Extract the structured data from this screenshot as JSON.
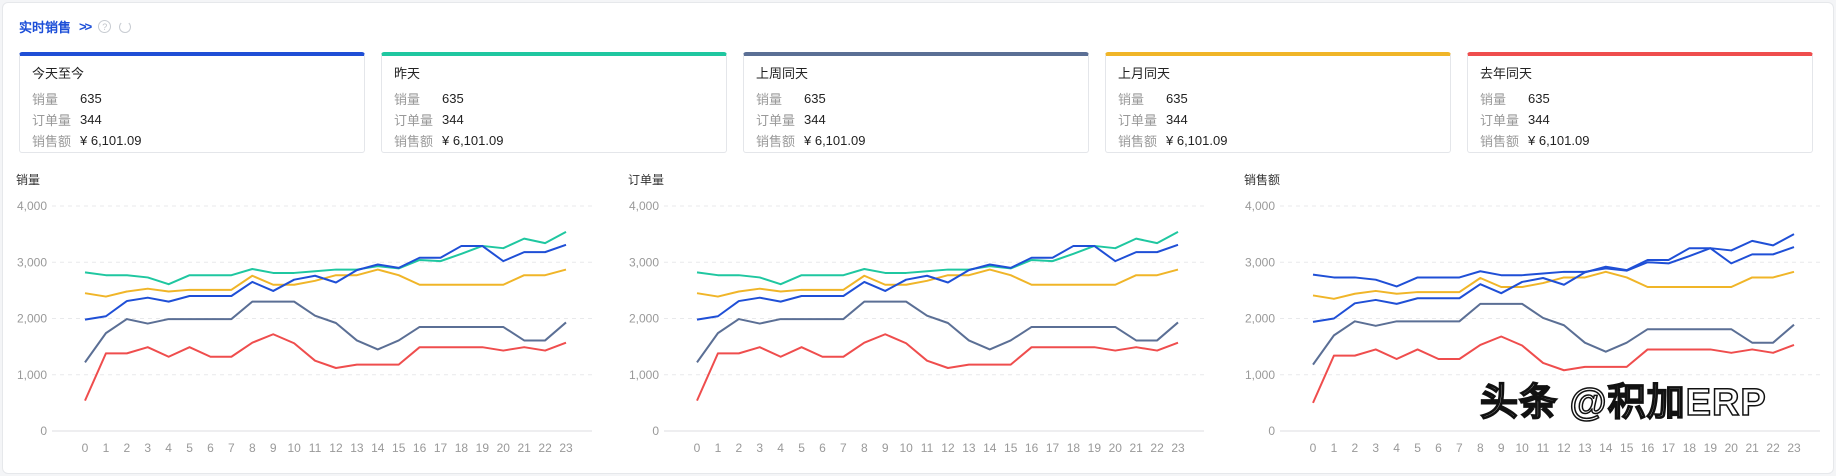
{
  "header": {
    "title": "实时销售",
    "more_icon": "double-chevron-right-icon",
    "help_icon": "question-circle-icon",
    "refresh_icon": "refresh-icon"
  },
  "labels": {
    "qty": "销量",
    "orders": "订单量",
    "amount": "销售额"
  },
  "cards": [
    {
      "title": "今天至今",
      "color": "#1f4fd6",
      "qty": "635",
      "orders": "344",
      "amount": "¥ 6,101.09"
    },
    {
      "title": "昨天",
      "color": "#1fc7a0",
      "qty": "635",
      "orders": "344",
      "amount": "¥ 6,101.09"
    },
    {
      "title": "上周同天",
      "color": "#5b6f95",
      "qty": "635",
      "orders": "344",
      "amount": "¥ 6,101.09"
    },
    {
      "title": "上月同天",
      "color": "#f0b528",
      "qty": "635",
      "orders": "344",
      "amount": "¥ 6,101.09"
    },
    {
      "title": "去年同天",
      "color": "#ef4d4d",
      "qty": "635",
      "orders": "344",
      "amount": "¥ 6,101.09"
    }
  ],
  "watermark": "头条 @积加ERP",
  "chart_data": [
    {
      "type": "line",
      "title": "销量",
      "ylim": [
        0,
        4000
      ],
      "yticks": [
        "0",
        "1,000",
        "2,000",
        "3,000",
        "4,000"
      ],
      "grid": true,
      "categories": [
        "0",
        "1",
        "2",
        "3",
        "4",
        "5",
        "6",
        "7",
        "8",
        "9",
        "10",
        "11",
        "12",
        "13",
        "14",
        "15",
        "16",
        "17",
        "18",
        "19",
        "20",
        "21",
        "22",
        "23"
      ],
      "series": [
        {
          "color": "#1fc7a0",
          "values": [
            2820,
            2770,
            2770,
            2730,
            2610,
            2770,
            2770,
            2770,
            2880,
            2810,
            2810,
            2840,
            2870,
            2870,
            2930,
            2890,
            3040,
            3020,
            3150,
            3290,
            3250,
            3420,
            3340,
            3540
          ]
        },
        {
          "color": "#f0b528",
          "values": [
            2450,
            2390,
            2480,
            2530,
            2480,
            2510,
            2510,
            2510,
            2760,
            2600,
            2600,
            2670,
            2770,
            2770,
            2870,
            2770,
            2600,
            2600,
            2600,
            2600,
            2600,
            2770,
            2770,
            2870
          ]
        },
        {
          "color": "#5b6f95",
          "values": [
            1220,
            1740,
            1990,
            1910,
            1990,
            1990,
            1990,
            1990,
            2300,
            2300,
            2300,
            2050,
            1920,
            1610,
            1450,
            1610,
            1850,
            1850,
            1850,
            1850,
            1850,
            1610,
            1610,
            1930
          ]
        },
        {
          "color": "#ef4d4d",
          "values": [
            540,
            1380,
            1380,
            1490,
            1320,
            1490,
            1320,
            1320,
            1570,
            1720,
            1560,
            1250,
            1120,
            1180,
            1180,
            1180,
            1490,
            1490,
            1490,
            1490,
            1430,
            1490,
            1430,
            1570
          ]
        },
        {
          "color": "#1f4fd6",
          "values": [
            1980,
            2040,
            2310,
            2370,
            2300,
            2400,
            2400,
            2400,
            2650,
            2490,
            2690,
            2760,
            2640,
            2860,
            2960,
            2900,
            3080,
            3080,
            3290,
            3290,
            3020,
            3180,
            3180,
            3310
          ]
        }
      ]
    },
    {
      "type": "line",
      "title": "订单量",
      "ylim": [
        0,
        4000
      ],
      "yticks": [
        "0",
        "1,000",
        "2,000",
        "3,000",
        "4,000"
      ],
      "grid": true,
      "categories": [
        "0",
        "1",
        "2",
        "3",
        "4",
        "5",
        "6",
        "7",
        "8",
        "9",
        "10",
        "11",
        "12",
        "13",
        "14",
        "15",
        "16",
        "17",
        "18",
        "19",
        "20",
        "21",
        "22",
        "23"
      ],
      "series": [
        {
          "color": "#1fc7a0",
          "values": [
            2820,
            2770,
            2770,
            2730,
            2610,
            2770,
            2770,
            2770,
            2880,
            2810,
            2810,
            2840,
            2870,
            2870,
            2930,
            2890,
            3040,
            3020,
            3150,
            3290,
            3250,
            3420,
            3340,
            3540
          ]
        },
        {
          "color": "#f0b528",
          "values": [
            2450,
            2390,
            2480,
            2530,
            2480,
            2510,
            2510,
            2510,
            2760,
            2600,
            2600,
            2670,
            2770,
            2770,
            2870,
            2770,
            2600,
            2600,
            2600,
            2600,
            2600,
            2770,
            2770,
            2870
          ]
        },
        {
          "color": "#5b6f95",
          "values": [
            1220,
            1740,
            1990,
            1910,
            1990,
            1990,
            1990,
            1990,
            2300,
            2300,
            2300,
            2050,
            1920,
            1610,
            1450,
            1610,
            1850,
            1850,
            1850,
            1850,
            1850,
            1610,
            1610,
            1930
          ]
        },
        {
          "color": "#ef4d4d",
          "values": [
            540,
            1380,
            1380,
            1490,
            1320,
            1490,
            1320,
            1320,
            1570,
            1720,
            1560,
            1250,
            1120,
            1180,
            1180,
            1180,
            1490,
            1490,
            1490,
            1490,
            1430,
            1490,
            1430,
            1570
          ]
        },
        {
          "color": "#1f4fd6",
          "values": [
            1980,
            2040,
            2310,
            2370,
            2300,
            2400,
            2400,
            2400,
            2650,
            2490,
            2690,
            2760,
            2640,
            2860,
            2960,
            2900,
            3080,
            3080,
            3290,
            3290,
            3020,
            3180,
            3180,
            3310
          ]
        }
      ]
    },
    {
      "type": "line",
      "title": "销售额",
      "ylim": [
        0,
        4000
      ],
      "yticks": [
        "0",
        "1,000",
        "2,000",
        "3,000",
        "4,000"
      ],
      "grid": true,
      "categories": [
        "0",
        "1",
        "2",
        "3",
        "4",
        "5",
        "6",
        "7",
        "8",
        "9",
        "10",
        "11",
        "12",
        "13",
        "14",
        "15",
        "16",
        "17",
        "18",
        "19",
        "20",
        "21",
        "22",
        "23"
      ],
      "series": [
        {
          "color": "#1f4fd6",
          "values": [
            2780,
            2730,
            2730,
            2690,
            2570,
            2730,
            2730,
            2730,
            2840,
            2770,
            2770,
            2800,
            2830,
            2830,
            2890,
            2850,
            3000,
            2980,
            3110,
            3250,
            3210,
            3380,
            3300,
            3500
          ]
        },
        {
          "color": "#f0b528",
          "values": [
            2410,
            2350,
            2440,
            2490,
            2440,
            2470,
            2470,
            2470,
            2720,
            2560,
            2560,
            2630,
            2730,
            2730,
            2830,
            2730,
            2560,
            2560,
            2560,
            2560,
            2560,
            2730,
            2730,
            2830
          ]
        },
        {
          "color": "#5b6f95",
          "values": [
            1180,
            1700,
            1950,
            1870,
            1950,
            1950,
            1950,
            1950,
            2260,
            2260,
            2260,
            2010,
            1880,
            1570,
            1410,
            1570,
            1810,
            1810,
            1810,
            1810,
            1810,
            1570,
            1570,
            1890
          ]
        },
        {
          "color": "#ef4d4d",
          "values": [
            500,
            1340,
            1340,
            1450,
            1280,
            1450,
            1280,
            1280,
            1530,
            1680,
            1520,
            1210,
            1080,
            1140,
            1140,
            1140,
            1450,
            1450,
            1450,
            1450,
            1390,
            1450,
            1390,
            1530
          ]
        },
        {
          "color": "#1f4fd6",
          "values": [
            1940,
            2000,
            2270,
            2330,
            2260,
            2360,
            2360,
            2360,
            2610,
            2450,
            2650,
            2720,
            2600,
            2820,
            2920,
            2860,
            3040,
            3040,
            3250,
            3250,
            2980,
            3140,
            3140,
            3270
          ]
        }
      ]
    }
  ]
}
